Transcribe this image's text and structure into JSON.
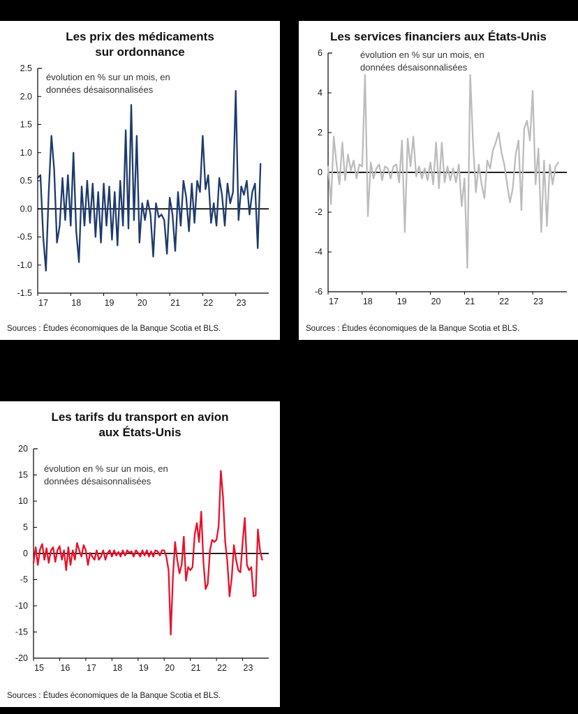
{
  "page": {
    "background": "#000000"
  },
  "chart_data": [
    {
      "type": "line",
      "title_lines": [
        "Les prix des médicaments",
        "sur ordonnance"
      ],
      "annotation_lines": [
        "évolution en % sur un mois, en",
        "données désaisonnalisées"
      ],
      "source": "Sources : Études économiques de la Banque Scotia et BLS.",
      "color": "#1e3a6d",
      "x_tick_labels": [
        "17",
        "18",
        "19",
        "20",
        "21",
        "22",
        "23"
      ],
      "total_months": 84,
      "ylim": [
        -1.5,
        2.5
      ],
      "yticks": [
        2.5,
        2.0,
        1.5,
        1.0,
        0.5,
        0.0,
        -0.5,
        -1.0,
        -1.5
      ],
      "ytick_labels": [
        "2.5",
        "2.0",
        "1.5",
        "1.0",
        "0.5",
        "0.0",
        "-0.5",
        "-1.0",
        "-1.5"
      ],
      "values": [
        0.55,
        0.6,
        -0.5,
        -1.1,
        0.3,
        1.3,
        0.7,
        -0.6,
        -0.3,
        0.55,
        -0.2,
        0.6,
        -0.3,
        1.0,
        -0.4,
        -0.95,
        0.4,
        -0.3,
        0.5,
        -0.25,
        0.45,
        -0.5,
        0.3,
        -0.6,
        0.45,
        -0.3,
        0.4,
        -0.55,
        0.3,
        -0.65,
        0.5,
        -0.3,
        1.4,
        -0.35,
        1.85,
        -0.2,
        1.3,
        -0.6,
        0.1,
        -0.2,
        0.15,
        -0.1,
        -0.85,
        0.1,
        -0.15,
        -0.1,
        -0.2,
        -0.8,
        0.2,
        -0.1,
        -0.75,
        0.3,
        -0.3,
        0.5,
        0.2,
        -0.4,
        0.45,
        -0.25,
        0.5,
        0.3,
        1.3,
        0.35,
        0.6,
        -0.25,
        0.1,
        -0.3,
        0.55,
        0.25,
        -0.3,
        0.45,
        0.1,
        0.3,
        2.1,
        -0.2,
        0.4,
        0.25,
        0.5,
        -0.1,
        0.3,
        0.45,
        -0.7,
        0.8
      ]
    },
    {
      "type": "line",
      "title_lines": [
        "Les services financiers aux États-Unis"
      ],
      "annotation_lines": [
        "évolution en % sur un mois, en",
        "données désaisonnalisées"
      ],
      "source": "Sources : Études économiques de la Banque Scotia et BLS.",
      "color": "#bcbcbc",
      "x_tick_labels": [
        "17",
        "18",
        "19",
        "20",
        "21",
        "22",
        "23"
      ],
      "total_months": 84,
      "ylim": [
        -6,
        6
      ],
      "yticks": [
        6,
        4,
        2,
        0,
        -2,
        -4,
        -6
      ],
      "ytick_labels": [
        "6",
        "4",
        "2",
        "0",
        "-2",
        "-4",
        "-6"
      ],
      "values": [
        0.3,
        -1.6,
        1.8,
        0.4,
        -0.6,
        1.5,
        -0.4,
        0.9,
        0.1,
        0.6,
        -0.3,
        0.4,
        0.3,
        4.9,
        -2.2,
        0.5,
        -0.3,
        0.2,
        0.4,
        -0.4,
        0.3,
        0.2,
        -0.3,
        0.3,
        0.4,
        -0.5,
        1.6,
        -3.0,
        1.7,
        0.3,
        1.8,
        -0.2,
        0.3,
        -0.3,
        0.2,
        -0.4,
        0.5,
        -0.6,
        1.5,
        -0.8,
        1.5,
        -0.5,
        0.3,
        -0.4,
        0.2,
        -0.5,
        0.4,
        -1.7,
        -0.3,
        -4.8,
        4.9,
        1.5,
        -1.0,
        0.4,
        -0.6,
        -1.3,
        0.6,
        0.2,
        1.1,
        1.5,
        2.0,
        1.0,
        0.4,
        -0.6,
        -1.5,
        -0.8,
        0.9,
        1.6,
        -1.9,
        2.2,
        2.6,
        1.6,
        4.1,
        -0.6,
        1.2,
        -3.0,
        0.6,
        -2.7,
        0.4,
        -0.6,
        0.3,
        0.5
      ]
    },
    {
      "type": "line",
      "title_lines": [
        "Les tarifs du transport en avion",
        "aux États-Unis"
      ],
      "annotation_lines": [
        "évolution en % sur un mois, en",
        "données désaisonnalisées"
      ],
      "source": "Sources : Études économiques de la Banque Scotia et BLS.",
      "color": "#e8112a",
      "x_tick_labels": [
        "15",
        "16",
        "17",
        "18",
        "19",
        "20",
        "21",
        "22",
        "23"
      ],
      "total_months": 108,
      "ylim": [
        -20,
        20
      ],
      "yticks": [
        20,
        15,
        10,
        5,
        0,
        -5,
        -10,
        -15,
        -20
      ],
      "ytick_labels": [
        "20",
        "15",
        "10",
        "5",
        "0",
        "-5",
        "-10",
        "-15",
        "-20"
      ],
      "values": [
        -1.8,
        1.2,
        -2.2,
        0.8,
        1.8,
        -1.2,
        1.0,
        -1.8,
        0.6,
        1.2,
        -1.6,
        0.6,
        1.4,
        -1.2,
        0.6,
        -3.2,
        1.2,
        -2.2,
        0.6,
        -1.2,
        2.0,
        0.6,
        -0.6,
        1.6,
        0.6,
        -2.2,
        0.1,
        -0.6,
        -1.2,
        0.6,
        -1.2,
        -0.6,
        0.6,
        -1.2,
        0.1,
        0.6,
        -0.6,
        0.6,
        -0.4,
        0.3,
        -0.6,
        0.6,
        -0.4,
        0.6,
        0.1,
        0.4,
        -0.6,
        0.6,
        0.1,
        -0.6,
        0.6,
        -0.4,
        0.6,
        -0.6,
        0.4,
        -0.6,
        0.6,
        0.4,
        -0.4,
        0.6,
        0.6,
        -0.6,
        -3.2,
        -15.5,
        -4.5,
        2.2,
        -1.2,
        -3.8,
        -2.2,
        3.2,
        -5.2,
        -2.6,
        -3.2,
        -2.6,
        3.6,
        5.8,
        2.2,
        8.0,
        -1.6,
        -6.8,
        -5.8,
        0.6,
        2.6,
        2.2,
        2.6,
        5.2,
        15.8,
        10.8,
        2.2,
        -1.6,
        -8.2,
        -4.6,
        1.6,
        -1.2,
        -3.2,
        -3.6,
        2.2,
        6.8,
        -2.2,
        -3.2,
        -2.6,
        -8.2,
        -8.0,
        4.6,
        0.6,
        -1.2
      ]
    }
  ]
}
